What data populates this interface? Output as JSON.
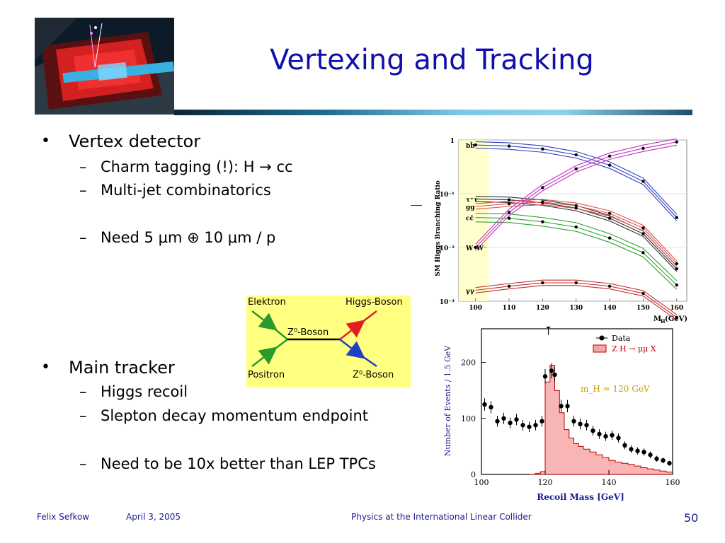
{
  "title": "Vertexing and Tracking",
  "bullets": [
    {
      "text": "Vertex detector",
      "subs": [
        "Charm tagging (!): H → cc",
        "Multi-jet combinatorics",
        "Need 5 μm ⊕ 10 μm / p"
      ]
    },
    {
      "text": "Main tracker",
      "subs": [
        "Higgs recoil",
        "Slepton decay momentum endpoint",
        "Need to be 10x better than LEP TPCs"
      ]
    }
  ],
  "feynman": {
    "electron": "Elektron",
    "positron": "Positron",
    "higgs": "Higgs-Boson",
    "z_mid": "Z⁰-Boson",
    "z_out": "Z⁰-Boson"
  },
  "br_chart": {
    "ylabel": "SM Higgs Branching Ratio",
    "xlabel_main": "M",
    "xlabel_sub": "H",
    "xlabel_unit": "(GeV)",
    "y_ticks": [
      "1",
      "10⁻¹",
      "10⁻²",
      "10⁻³"
    ],
    "x_ticks": [
      "100",
      "110",
      "120",
      "130",
      "140",
      "150",
      "160"
    ],
    "channels": [
      "bb̄",
      "τ⁺τ⁻",
      "gg",
      "cc̄",
      "W⁺W⁻",
      "γγ"
    ]
  },
  "recoil_chart": {
    "ylabel": "Number of Events / 1.5 GeV",
    "xlabel": "Recoil Mass  [GeV]",
    "legend_data": "Data",
    "legend_mc": "Z H → μμ X",
    "annotation": "m_H = 120 GeV",
    "y_ticks": [
      "0",
      "100",
      "200"
    ],
    "x_ticks": [
      "100",
      "120",
      "140",
      "160"
    ]
  },
  "footer": {
    "author": "Felix Sefkow",
    "date": "April 3, 2005",
    "talk": "Physics at the International Linear Collider",
    "page": "50"
  },
  "chart_data": [
    {
      "type": "line",
      "ylabel": "SM Higgs Branching Ratio",
      "yscale": "log",
      "ylim": [
        0.001,
        1
      ],
      "xlim": [
        95,
        163
      ],
      "x": [
        100,
        110,
        120,
        130,
        140,
        150,
        160
      ],
      "series": [
        {
          "name": "bb̄",
          "values": [
            0.81,
            0.77,
            0.68,
            0.53,
            0.34,
            0.17,
            0.036
          ]
        },
        {
          "name": "τ⁺τ⁻",
          "values": [
            0.08,
            0.077,
            0.068,
            0.054,
            0.035,
            0.018,
            0.004
          ]
        },
        {
          "name": "gg",
          "values": [
            0.058,
            0.065,
            0.07,
            0.06,
            0.043,
            0.023,
            0.005
          ]
        },
        {
          "name": "cc̄",
          "values": [
            0.036,
            0.035,
            0.03,
            0.024,
            0.015,
            0.008,
            0.002
          ]
        },
        {
          "name": "W⁺W⁻",
          "values": [
            0.01,
            0.045,
            0.13,
            0.29,
            0.5,
            0.7,
            0.92
          ]
        },
        {
          "name": "γγ",
          "values": [
            0.0016,
            0.0019,
            0.0022,
            0.0022,
            0.0019,
            0.0014,
            0.0005
          ]
        }
      ]
    },
    {
      "type": "bar",
      "xlabel": "Recoil Mass  [GeV]",
      "ylabel": "Number of Events / 1.5 GeV",
      "xlim": [
        100,
        160
      ],
      "ylim": [
        0,
        260
      ],
      "series": [
        {
          "name": "Data",
          "x": [
            101,
            103,
            105,
            107,
            109,
            111,
            113,
            115,
            117,
            119,
            120,
            121,
            122,
            123,
            125,
            127,
            129,
            131,
            133,
            135,
            137,
            139,
            141,
            143,
            145,
            147,
            149,
            151,
            153,
            155,
            157,
            159
          ],
          "values": [
            125,
            120,
            95,
            100,
            92,
            98,
            88,
            85,
            88,
            95,
            175,
            265,
            185,
            178,
            122,
            122,
            95,
            90,
            88,
            78,
            72,
            68,
            70,
            65,
            52,
            45,
            42,
            40,
            35,
            28,
            25,
            20
          ]
        },
        {
          "name": "Z H → μμ X",
          "x": [
            115,
            117,
            118.5,
            120,
            121.5,
            123,
            124.5,
            126,
            127.5,
            129,
            130.5,
            132,
            134,
            136,
            138,
            140,
            142,
            144,
            146,
            148,
            150,
            152,
            154,
            156,
            158
          ],
          "values": [
            0,
            2,
            5,
            165,
            195,
            150,
            110,
            80,
            65,
            55,
            50,
            45,
            40,
            35,
            30,
            25,
            22,
            20,
            18,
            15,
            12,
            10,
            8,
            6,
            4
          ]
        }
      ]
    }
  ]
}
